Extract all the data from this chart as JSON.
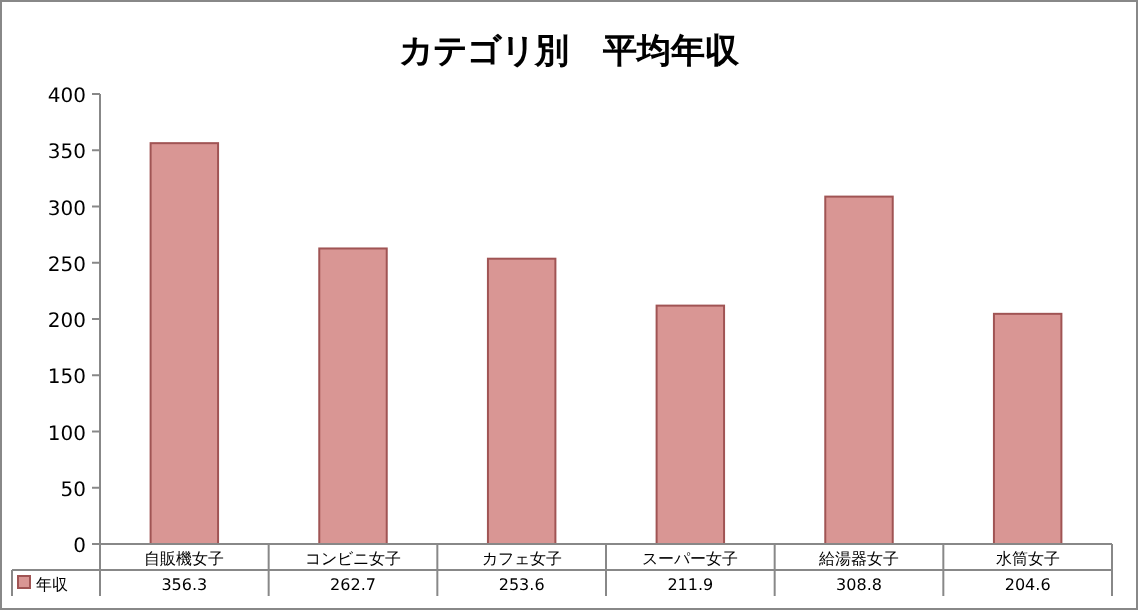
{
  "chart_data": {
    "type": "bar",
    "title": "カテゴリ別　平均年収",
    "categories": [
      "自販機女子",
      "コンビニ女子",
      "カフェ女子",
      "スーパー女子",
      "給湯器女子",
      "水筒女子"
    ],
    "series": [
      {
        "name": "年収",
        "color": "#d99694",
        "values": [
          356.3,
          262.7,
          253.6,
          211.9,
          308.8,
          204.6
        ]
      }
    ],
    "ylim": [
      0,
      400
    ],
    "yticks": [
      0,
      50,
      100,
      150,
      200,
      250,
      300,
      350,
      400
    ],
    "data_labels": true,
    "legend": "bottom"
  }
}
